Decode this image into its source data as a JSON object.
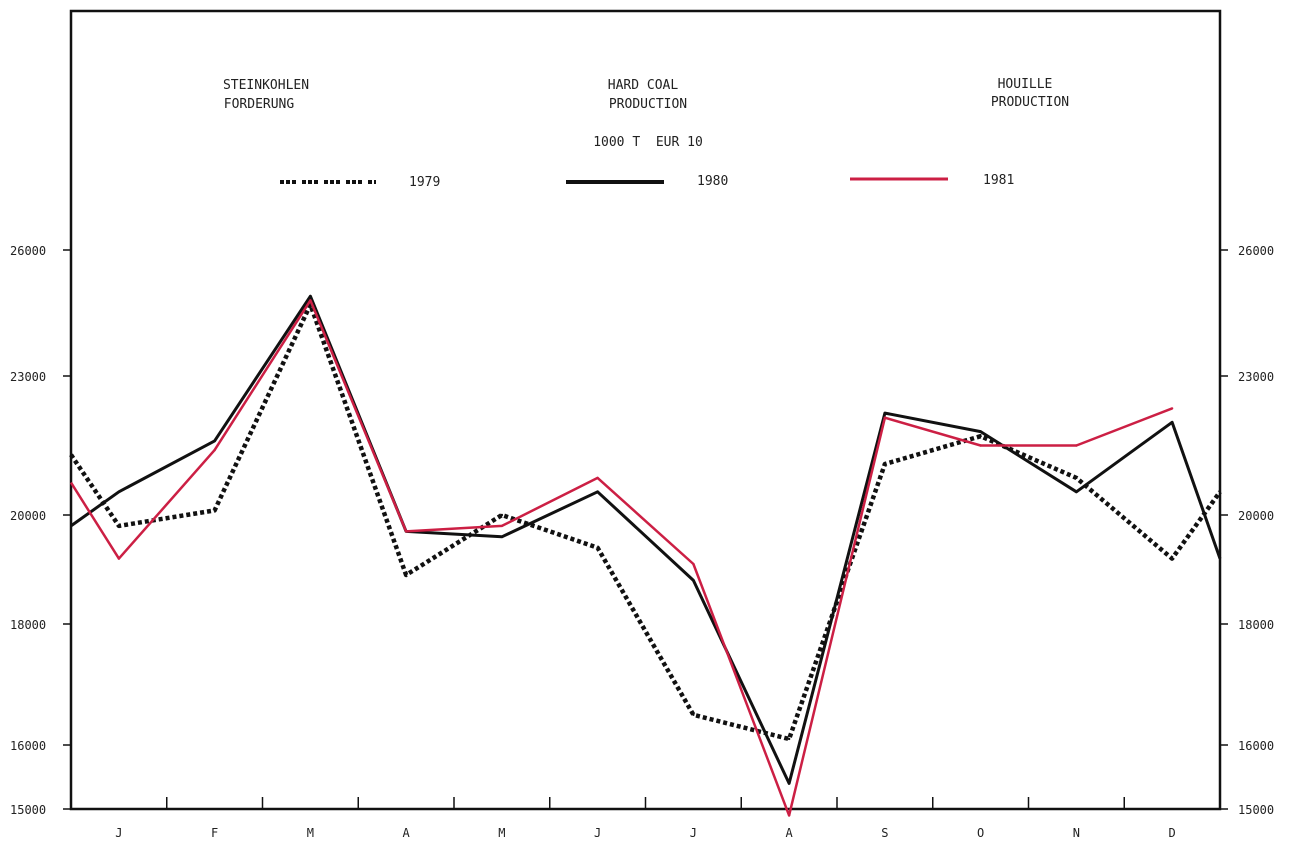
{
  "chart_data": {
    "type": "line",
    "title_de": [
      "STEINKOHLEN",
      "FORDERUNG"
    ],
    "title_en": [
      "HARD COAL",
      "PRODUCTION"
    ],
    "title_fr": [
      "HOUILLE",
      "PRODUCTION"
    ],
    "unit": "1000 T  EUR 10",
    "categories": [
      "J",
      "F",
      "M",
      "A",
      "M",
      "J",
      "J",
      "A",
      "S",
      "O",
      "N",
      "D"
    ],
    "y_ticks": [
      "15000",
      "16000",
      "18000",
      "20000",
      "23000",
      "26000"
    ],
    "y_tick_values": [
      15000,
      16000,
      18000,
      20000,
      23000,
      26000
    ],
    "series": [
      {
        "name": "1979",
        "style": "dotted",
        "color": "#111111",
        "start": 21300,
        "values": [
          19800,
          20100,
          24700,
          18900,
          20000,
          19400,
          16500,
          16100,
          21100,
          21700,
          20800,
          19200
        ],
        "end": 20500
      },
      {
        "name": "1980",
        "style": "solid",
        "color": "#111111",
        "start": 19800,
        "values": [
          20500,
          21600,
          24900,
          19700,
          19600,
          20500,
          18800,
          15400,
          22200,
          21800,
          20500,
          22000
        ],
        "end": 19200
      },
      {
        "name": "1981",
        "style": "solid",
        "color": "#cc1f44",
        "start": 20700,
        "values": [
          19200,
          21400,
          24800,
          19700,
          19800,
          20800,
          19100,
          14900,
          22100,
          21500,
          21500,
          22300
        ],
        "end": null
      }
    ]
  }
}
